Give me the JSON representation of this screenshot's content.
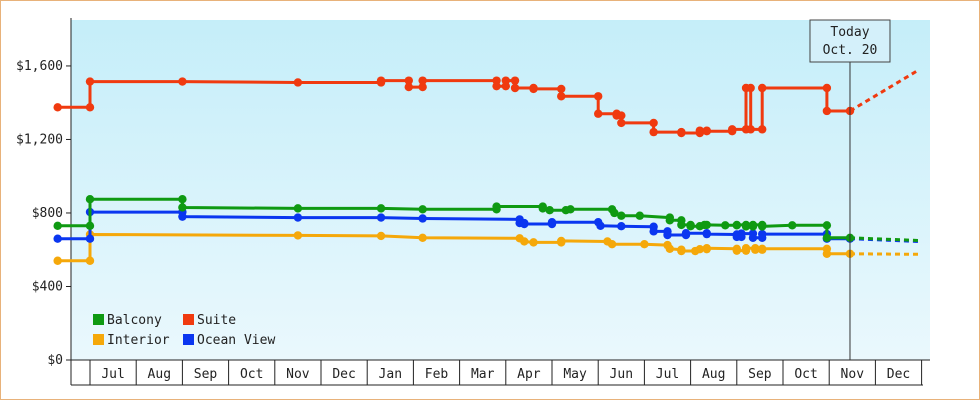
{
  "chart_data": {
    "type": "line",
    "title": "",
    "xlabel": "",
    "ylabel": "",
    "ylim": [
      0,
      1850
    ],
    "yticks": [
      0,
      400,
      800,
      1200,
      1600
    ],
    "ytick_labels": [
      "$0",
      "$400",
      "$800",
      "$1,200",
      "$1,600"
    ],
    "x_months": [
      "Jul",
      "Aug",
      "Sep",
      "Oct",
      "Nov",
      "Dec",
      "Jan",
      "Feb",
      "Mar",
      "Apr",
      "May",
      "Jun",
      "Jul",
      "Aug",
      "Sep",
      "Oct",
      "Nov",
      "Dec"
    ],
    "grid": false,
    "legend_position": "bottom-left",
    "today": {
      "line1": "Today",
      "line2": "Oct. 20",
      "x": 16.45
    },
    "series": [
      {
        "name": "Balcony",
        "color": "#0f9a12",
        "points": [
          [
            -0.7,
            730
          ],
          [
            0.0,
            730
          ],
          [
            0.0,
            875
          ],
          [
            2.0,
            875
          ],
          [
            2.0,
            830
          ],
          [
            4.5,
            825
          ],
          [
            6.3,
            825
          ],
          [
            7.2,
            820
          ],
          [
            8.8,
            820
          ],
          [
            8.8,
            835
          ],
          [
            9.8,
            835
          ],
          [
            9.8,
            825
          ],
          [
            9.95,
            815
          ],
          [
            10.3,
            815
          ],
          [
            10.4,
            820
          ],
          [
            11.3,
            820
          ],
          [
            11.35,
            800
          ],
          [
            11.5,
            785
          ],
          [
            11.9,
            785
          ],
          [
            12.55,
            775
          ],
          [
            12.55,
            760
          ],
          [
            12.8,
            760
          ],
          [
            12.8,
            735
          ],
          [
            13.0,
            735
          ],
          [
            13.0,
            728
          ],
          [
            13.2,
            728
          ],
          [
            13.3,
            735
          ],
          [
            13.35,
            735
          ],
          [
            13.75,
            733
          ],
          [
            14.0,
            733
          ],
          [
            14.0,
            735
          ],
          [
            14.2,
            735
          ],
          [
            14.2,
            727
          ],
          [
            14.35,
            727
          ],
          [
            14.35,
            735
          ],
          [
            14.55,
            735
          ],
          [
            14.55,
            727
          ],
          [
            15.2,
            733
          ],
          [
            15.95,
            733
          ],
          [
            15.95,
            665
          ],
          [
            16.45,
            665
          ]
        ],
        "forecast": [
          [
            16.45,
            665
          ],
          [
            17.95,
            650
          ]
        ]
      },
      {
        "name": "Interior",
        "color": "#f5a80a",
        "points": [
          [
            -0.7,
            540
          ],
          [
            0.0,
            540
          ],
          [
            0.0,
            683
          ],
          [
            4.5,
            678
          ],
          [
            6.3,
            675
          ],
          [
            7.2,
            665
          ],
          [
            9.3,
            662
          ],
          [
            9.4,
            645
          ],
          [
            9.6,
            640
          ],
          [
            10.2,
            640
          ],
          [
            10.2,
            648
          ],
          [
            11.2,
            645
          ],
          [
            11.3,
            630
          ],
          [
            12.0,
            630
          ],
          [
            12.5,
            625
          ],
          [
            12.55,
            605
          ],
          [
            12.8,
            600
          ],
          [
            12.8,
            593
          ],
          [
            13.1,
            593
          ],
          [
            13.2,
            603
          ],
          [
            13.35,
            603
          ],
          [
            13.35,
            608
          ],
          [
            14.0,
            605
          ],
          [
            14.0,
            595
          ],
          [
            14.2,
            595
          ],
          [
            14.2,
            608
          ],
          [
            14.4,
            608
          ],
          [
            14.4,
            600
          ],
          [
            14.55,
            600
          ],
          [
            14.55,
            605
          ],
          [
            15.95,
            605
          ],
          [
            15.95,
            578
          ],
          [
            16.45,
            578
          ]
        ],
        "forecast": [
          [
            16.45,
            578
          ],
          [
            17.95,
            575
          ]
        ]
      },
      {
        "name": "Suite",
        "color": "#f03a0f",
        "points": [
          [
            -0.7,
            1375
          ],
          [
            0.0,
            1375
          ],
          [
            0.0,
            1515
          ],
          [
            2.0,
            1515
          ],
          [
            4.5,
            1510
          ],
          [
            6.3,
            1510
          ],
          [
            6.3,
            1520
          ],
          [
            6.9,
            1520
          ],
          [
            6.9,
            1485
          ],
          [
            7.2,
            1485
          ],
          [
            7.2,
            1520
          ],
          [
            8.8,
            1520
          ],
          [
            8.8,
            1490
          ],
          [
            9.0,
            1490
          ],
          [
            9.0,
            1520
          ],
          [
            9.2,
            1520
          ],
          [
            9.2,
            1480
          ],
          [
            9.6,
            1480
          ],
          [
            9.6,
            1475
          ],
          [
            10.2,
            1475
          ],
          [
            10.2,
            1435
          ],
          [
            11.0,
            1435
          ],
          [
            11.0,
            1340
          ],
          [
            11.4,
            1340
          ],
          [
            11.4,
            1330
          ],
          [
            11.5,
            1330
          ],
          [
            11.5,
            1290
          ],
          [
            12.2,
            1290
          ],
          [
            12.2,
            1240
          ],
          [
            12.8,
            1240
          ],
          [
            12.8,
            1235
          ],
          [
            13.2,
            1235
          ],
          [
            13.2,
            1248
          ],
          [
            13.35,
            1248
          ],
          [
            13.35,
            1245
          ],
          [
            13.9,
            1245
          ],
          [
            13.9,
            1255
          ],
          [
            14.2,
            1255
          ],
          [
            14.2,
            1480
          ],
          [
            14.3,
            1480
          ],
          [
            14.3,
            1255
          ],
          [
            14.55,
            1255
          ],
          [
            14.55,
            1480
          ],
          [
            15.95,
            1480
          ],
          [
            15.95,
            1355
          ],
          [
            16.45,
            1355
          ]
        ],
        "forecast": [
          [
            16.45,
            1355
          ],
          [
            17.95,
            1580
          ]
        ]
      },
      {
        "name": "Ocean View",
        "color": "#0a36f0",
        "points": [
          [
            -0.7,
            660
          ],
          [
            0.0,
            660
          ],
          [
            0.0,
            805
          ],
          [
            2.0,
            805
          ],
          [
            2.0,
            780
          ],
          [
            4.5,
            775
          ],
          [
            6.3,
            775
          ],
          [
            7.2,
            770
          ],
          [
            9.3,
            765
          ],
          [
            9.3,
            745
          ],
          [
            9.4,
            745
          ],
          [
            9.4,
            740
          ],
          [
            10.0,
            740
          ],
          [
            10.0,
            750
          ],
          [
            11.0,
            750
          ],
          [
            11.05,
            730
          ],
          [
            11.5,
            728
          ],
          [
            12.2,
            725
          ],
          [
            12.2,
            700
          ],
          [
            12.5,
            700
          ],
          [
            12.5,
            680
          ],
          [
            12.9,
            680
          ],
          [
            12.9,
            690
          ],
          [
            13.35,
            690
          ],
          [
            13.35,
            685
          ],
          [
            14.0,
            683
          ],
          [
            14.0,
            670
          ],
          [
            14.1,
            670
          ],
          [
            14.1,
            688
          ],
          [
            14.35,
            688
          ],
          [
            14.35,
            665
          ],
          [
            14.55,
            665
          ],
          [
            14.55,
            685
          ],
          [
            15.95,
            685
          ],
          [
            15.95,
            660
          ],
          [
            16.45,
            660
          ]
        ],
        "forecast": [
          [
            16.45,
            660
          ],
          [
            17.95,
            645
          ]
        ]
      }
    ]
  }
}
